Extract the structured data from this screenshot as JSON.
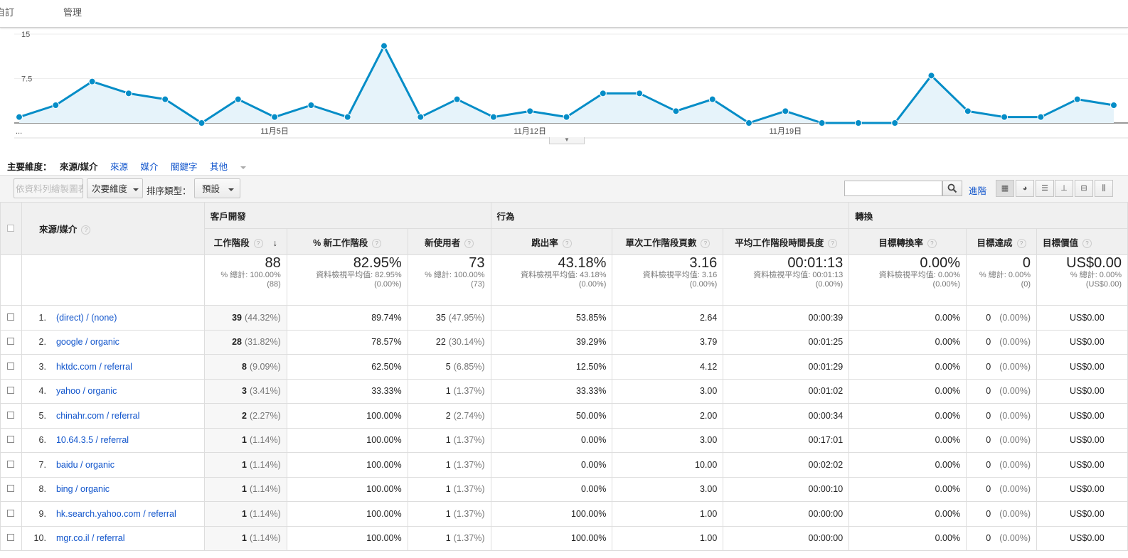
{
  "topnav": {
    "item1": "自訂",
    "item2": "管理"
  },
  "chart_data": {
    "type": "area",
    "yticks": [
      "15",
      "7.5"
    ],
    "ylim": [
      0,
      15
    ],
    "xticks": [
      {
        "label": "...",
        "index": 0
      },
      {
        "label": "11月5日",
        "index": 7
      },
      {
        "label": "11月12日",
        "index": 14
      },
      {
        "label": "11月19日",
        "index": 21
      }
    ],
    "values": [
      1,
      3,
      7,
      5,
      4,
      0,
      4,
      1,
      3,
      1,
      13,
      1,
      4,
      1,
      2,
      1,
      5,
      5,
      2,
      4,
      0,
      2,
      0,
      0,
      0,
      8,
      2,
      1,
      1,
      4,
      3
    ],
    "color": "#058dc7",
    "fill": "#e6f3fa"
  },
  "dims": {
    "label": "主要維度：",
    "current": "來源/媒介",
    "links": [
      "來源",
      "媒介",
      "關鍵字"
    ],
    "other": "其他"
  },
  "toolbar": {
    "plot_rows": "依資料列繪製圖表",
    "secondary": "次要維度",
    "sort_label": "排序類型：",
    "sort_value": "預設",
    "advanced": "進階"
  },
  "table": {
    "dim_header": "來源/媒介",
    "groups": {
      "acq": "客戶開發",
      "beh": "行為",
      "conv": "轉換"
    },
    "cols": [
      "工作階段",
      "% 新工作階段",
      "新使用者",
      "跳出率",
      "單次工作階段頁數",
      "平均工作階段時間長度",
      "目標轉換率",
      "目標達成",
      "目標價值"
    ],
    "totals": [
      {
        "big": "88",
        "l1": "% 總計: 100.00%",
        "l2": "(88)"
      },
      {
        "big": "82.95%",
        "l1": "資料檢視平均值: 82.95%",
        "l2": "(0.00%)"
      },
      {
        "big": "73",
        "l1": "% 總計: 100.00%",
        "l2": "(73)"
      },
      {
        "big": "43.18%",
        "l1": "資料檢視平均值: 43.18%",
        "l2": "(0.00%)"
      },
      {
        "big": "3.16",
        "l1": "資料檢視平均值: 3.16",
        "l2": "(0.00%)"
      },
      {
        "big": "00:01:13",
        "l1": "資料檢視平均值: 00:01:13",
        "l2": "(0.00%)"
      },
      {
        "big": "0.00%",
        "l1": "資料檢視平均值: 0.00%",
        "l2": "(0.00%)"
      },
      {
        "big": "0",
        "l1": "% 總計: 0.00%",
        "l2": "(0)"
      },
      {
        "big": "US$0.00",
        "l1": "% 總計: 0.00%",
        "l2": "(US$0.00)"
      }
    ],
    "rows": [
      {
        "idx": "1.",
        "src": "(direct) / (none)",
        "s": "39",
        "sp": "(44.32%)",
        "nsp": "89.74%",
        "nu": "35",
        "nup": "(47.95%)",
        "br": "53.85%",
        "pps": "2.64",
        "dur": "00:00:39",
        "cr": "0.00%",
        "gc": "0",
        "gcp": "(0.00%)",
        "gv": "US$0.00"
      },
      {
        "idx": "2.",
        "src": "google / organic",
        "s": "28",
        "sp": "(31.82%)",
        "nsp": "78.57%",
        "nu": "22",
        "nup": "(30.14%)",
        "br": "39.29%",
        "pps": "3.79",
        "dur": "00:01:25",
        "cr": "0.00%",
        "gc": "0",
        "gcp": "(0.00%)",
        "gv": "US$0.00"
      },
      {
        "idx": "3.",
        "src": "hktdc.com / referral",
        "s": "8",
        "sp": "(9.09%)",
        "nsp": "62.50%",
        "nu": "5",
        "nup": "(6.85%)",
        "br": "12.50%",
        "pps": "4.12",
        "dur": "00:01:29",
        "cr": "0.00%",
        "gc": "0",
        "gcp": "(0.00%)",
        "gv": "US$0.00"
      },
      {
        "idx": "4.",
        "src": "yahoo / organic",
        "s": "3",
        "sp": "(3.41%)",
        "nsp": "33.33%",
        "nu": "1",
        "nup": "(1.37%)",
        "br": "33.33%",
        "pps": "3.00",
        "dur": "00:01:02",
        "cr": "0.00%",
        "gc": "0",
        "gcp": "(0.00%)",
        "gv": "US$0.00"
      },
      {
        "idx": "5.",
        "src": "chinahr.com / referral",
        "s": "2",
        "sp": "(2.27%)",
        "nsp": "100.00%",
        "nu": "2",
        "nup": "(2.74%)",
        "br": "50.00%",
        "pps": "2.00",
        "dur": "00:00:34",
        "cr": "0.00%",
        "gc": "0",
        "gcp": "(0.00%)",
        "gv": "US$0.00"
      },
      {
        "idx": "6.",
        "src": "10.64.3.5 / referral",
        "s": "1",
        "sp": "(1.14%)",
        "nsp": "100.00%",
        "nu": "1",
        "nup": "(1.37%)",
        "br": "0.00%",
        "pps": "3.00",
        "dur": "00:17:01",
        "cr": "0.00%",
        "gc": "0",
        "gcp": "(0.00%)",
        "gv": "US$0.00"
      },
      {
        "idx": "7.",
        "src": "baidu / organic",
        "s": "1",
        "sp": "(1.14%)",
        "nsp": "100.00%",
        "nu": "1",
        "nup": "(1.37%)",
        "br": "0.00%",
        "pps": "10.00",
        "dur": "00:02:02",
        "cr": "0.00%",
        "gc": "0",
        "gcp": "(0.00%)",
        "gv": "US$0.00"
      },
      {
        "idx": "8.",
        "src": "bing / organic",
        "s": "1",
        "sp": "(1.14%)",
        "nsp": "100.00%",
        "nu": "1",
        "nup": "(1.37%)",
        "br": "0.00%",
        "pps": "3.00",
        "dur": "00:00:10",
        "cr": "0.00%",
        "gc": "0",
        "gcp": "(0.00%)",
        "gv": "US$0.00"
      },
      {
        "idx": "9.",
        "src": "hk.search.yahoo.com / referral",
        "s": "1",
        "sp": "(1.14%)",
        "nsp": "100.00%",
        "nu": "1",
        "nup": "(1.37%)",
        "br": "100.00%",
        "pps": "1.00",
        "dur": "00:00:00",
        "cr": "0.00%",
        "gc": "0",
        "gcp": "(0.00%)",
        "gv": "US$0.00"
      },
      {
        "idx": "10.",
        "src": "mgr.co.il / referral",
        "s": "1",
        "sp": "(1.14%)",
        "nsp": "100.00%",
        "nu": "1",
        "nup": "(1.37%)",
        "br": "100.00%",
        "pps": "1.00",
        "dur": "00:00:00",
        "cr": "0.00%",
        "gc": "0",
        "gcp": "(0.00%)",
        "gv": "US$0.00"
      }
    ]
  }
}
